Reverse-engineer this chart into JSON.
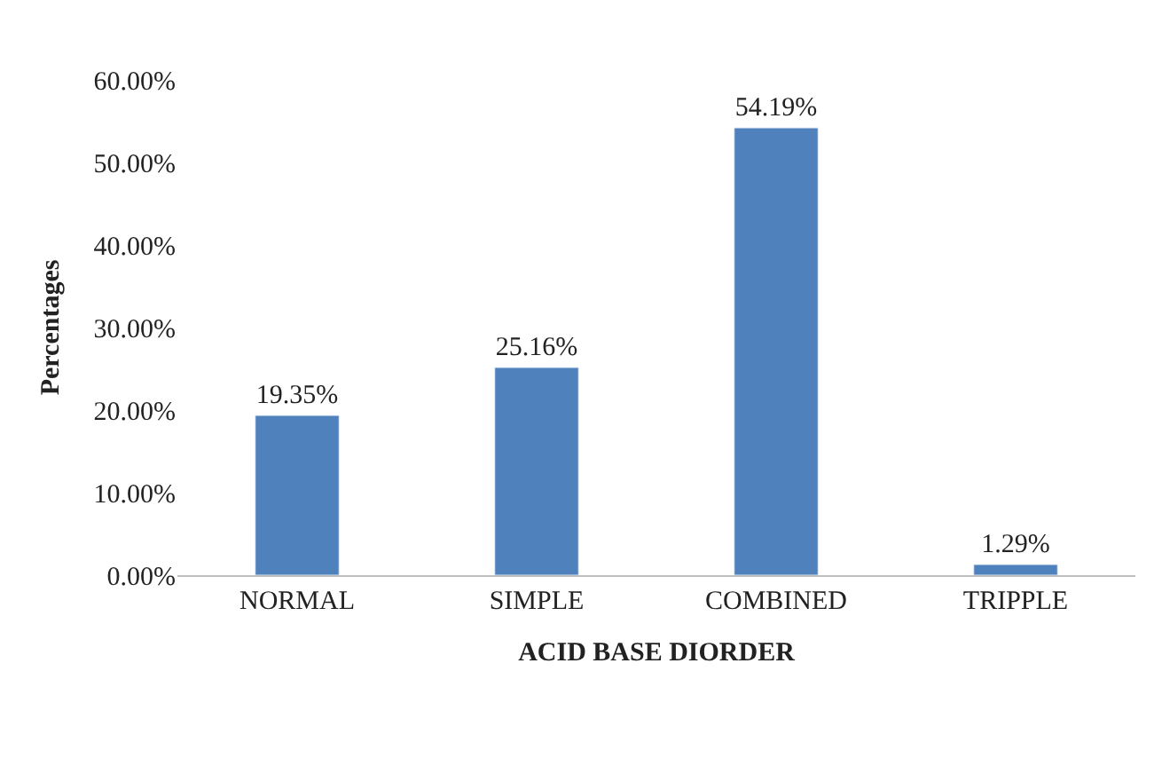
{
  "chart_data": {
    "type": "bar",
    "xlabel": "ACID BASE DIORDER",
    "ylabel": "Percentages",
    "categories": [
      "NORMAL",
      "SIMPLE",
      "COMBINED",
      "TRIPPLE"
    ],
    "values": [
      19.35,
      25.16,
      54.19,
      1.29
    ],
    "value_labels": [
      "19.35%",
      "25.16%",
      "54.19%",
      "1.29%"
    ],
    "color": "#4f81bd",
    "ylim": [
      0,
      60
    ],
    "yticks": [
      {
        "value": 0,
        "label": "0.00%"
      },
      {
        "value": 10,
        "label": "10.00%"
      },
      {
        "value": 20,
        "label": "20.00%"
      },
      {
        "value": 30,
        "label": "30.00%"
      },
      {
        "value": 40,
        "label": "40.00%"
      },
      {
        "value": 50,
        "label": "50.00%"
      },
      {
        "value": 60,
        "label": "60.00%"
      }
    ],
    "grid": false
  }
}
